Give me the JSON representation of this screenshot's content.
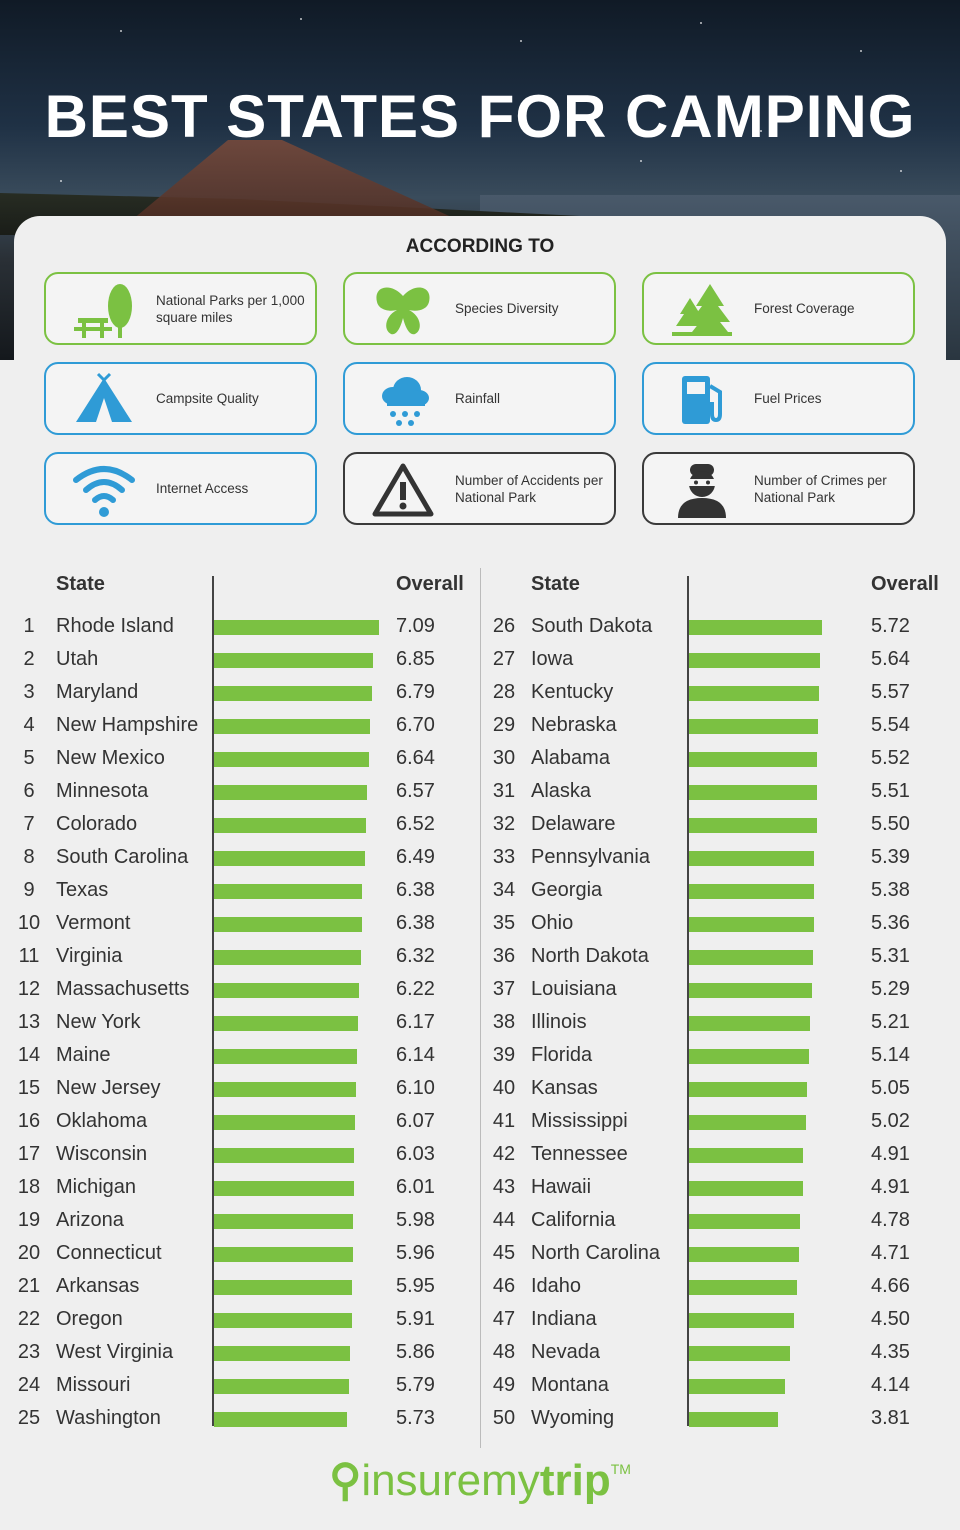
{
  "title": "BEST STATES FOR CAMPING",
  "according_to": "ACCORDING TO",
  "criteria": [
    {
      "label": "National Parks per 1,000 square miles",
      "icon": "picnic-tree-icon",
      "color": "#7bc142"
    },
    {
      "label": "Species Diversity",
      "icon": "butterfly-icon",
      "color": "#7bc142"
    },
    {
      "label": "Forest Coverage",
      "icon": "pine-trees-icon",
      "color": "#7bc142"
    },
    {
      "label": "Campsite Quality",
      "icon": "tent-icon",
      "color": "#2f9bd6"
    },
    {
      "label": "Rainfall",
      "icon": "rain-cloud-icon",
      "color": "#2f9bd6"
    },
    {
      "label": "Fuel Prices",
      "icon": "fuel-pump-icon",
      "color": "#2f9bd6"
    },
    {
      "label": "Internet Access",
      "icon": "wifi-icon",
      "color": "#2f9bd6"
    },
    {
      "label": "Number of Accidents per National Park",
      "icon": "warning-icon",
      "color": "#3a3a3a"
    },
    {
      "label": "Number of Crimes per National Park",
      "icon": "burglar-icon",
      "color": "#3a3a3a"
    }
  ],
  "table": {
    "state_header": "State",
    "overall_header": "Overall"
  },
  "chart_data": {
    "type": "bar",
    "orientation": "horizontal",
    "bar_color": "#7bc142",
    "ranks": [
      1,
      2,
      3,
      4,
      5,
      6,
      7,
      8,
      9,
      10,
      11,
      12,
      13,
      14,
      15,
      16,
      17,
      18,
      19,
      20,
      21,
      22,
      23,
      24,
      25,
      26,
      27,
      28,
      29,
      30,
      31,
      32,
      33,
      34,
      35,
      36,
      37,
      38,
      39,
      40,
      41,
      42,
      43,
      44,
      45,
      46,
      47,
      48,
      49,
      50
    ],
    "categories": [
      "Rhode Island",
      "Utah",
      "Maryland",
      "New Hampshire",
      "New Mexico",
      "Minnesota",
      "Colorado",
      "South Carolina",
      "Texas",
      "Vermont",
      "Virginia",
      "Massachusetts",
      "New York",
      "Maine",
      "New Jersey",
      "Oklahoma",
      "Wisconsin",
      "Michigan",
      "Arizona",
      "Connecticut",
      "Arkansas",
      "Oregon",
      "West Virginia",
      "Missouri",
      "Washington",
      "South Dakota",
      "Iowa",
      "Kentucky",
      "Nebraska",
      "Alabama",
      "Alaska",
      "Delaware",
      "Pennsylvania",
      "Georgia",
      "Ohio",
      "North Dakota",
      "Louisiana",
      "Illinois",
      "Florida",
      "Kansas",
      "Mississippi",
      "Tennessee",
      "Hawaii",
      "California",
      "North Carolina",
      "Idaho",
      "Indiana",
      "Nevada",
      "Montana",
      "Wyoming"
    ],
    "values": [
      "7.09",
      "6.85",
      "6.79",
      "6.70",
      "6.64",
      "6.57",
      "6.52",
      "6.49",
      "6.38",
      "6.38",
      "6.32",
      "6.22",
      "6.17",
      "6.14",
      "6.10",
      "6.07",
      "6.03",
      "6.01",
      "5.98",
      "5.96",
      "5.95",
      "5.91",
      "5.86",
      "5.79",
      "5.73",
      "5.72",
      "5.64",
      "5.57",
      "5.54",
      "5.52",
      "5.51",
      "5.50",
      "5.39",
      "5.38",
      "5.36",
      "5.31",
      "5.29",
      "5.21",
      "5.14",
      "5.05",
      "5.02",
      "4.91",
      "4.91",
      "4.78",
      "4.71",
      "4.66",
      "4.50",
      "4.35",
      "4.14",
      "3.81"
    ],
    "xlim": [
      0,
      7.09
    ]
  },
  "logo": {
    "pin": "⚲",
    "insure": "insuremy",
    "trip": "trip",
    "tm": "TM"
  }
}
